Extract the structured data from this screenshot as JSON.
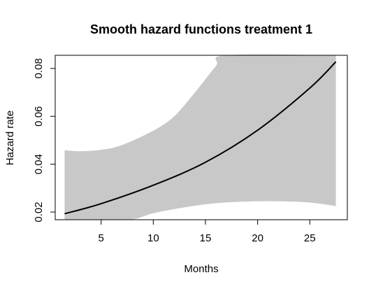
{
  "chart_data": {
    "type": "line",
    "title": "Smooth hazard functions treatment 1",
    "xlabel": "Months",
    "ylabel": "Hazard rate",
    "xlim": [
      0.6,
      28.6
    ],
    "ylim": [
      0.0168,
      0.0855
    ],
    "x_ticks": [
      5,
      10,
      15,
      20,
      25
    ],
    "y_ticks": [
      0.02,
      0.04,
      0.06,
      0.08
    ],
    "x_tick_labels": [
      "5",
      "10",
      "15",
      "20",
      "25"
    ],
    "y_tick_labels": [
      "0.02",
      "0.04",
      "0.06",
      "0.08"
    ],
    "grid": false,
    "legend": "none",
    "colors": {
      "line": "#000000",
      "band": "#c8c8c8"
    },
    "series": [
      {
        "role": "estimate",
        "x": [
          1.5,
          5,
          10,
          15,
          20,
          25,
          27.5
        ],
        "y": [
          0.0193,
          0.0235,
          0.0312,
          0.0408,
          0.0542,
          0.0718,
          0.0828
        ]
      },
      {
        "role": "upper-confidence-bound",
        "x": [
          1.5,
          3,
          5,
          7,
          10,
          12,
          14,
          16,
          17,
          27.5
        ],
        "y": [
          0.0458,
          0.0454,
          0.046,
          0.048,
          0.054,
          0.06,
          0.07,
          0.081,
          0.0855,
          0.0855
        ]
      },
      {
        "role": "lower-confidence-bound",
        "x": [
          1.5,
          5,
          8,
          10,
          13,
          16,
          19,
          22,
          25,
          27.5
        ],
        "y": [
          0.0168,
          0.0168,
          0.017,
          0.0195,
          0.022,
          0.0237,
          0.0244,
          0.0245,
          0.024,
          0.0225
        ]
      }
    ]
  }
}
